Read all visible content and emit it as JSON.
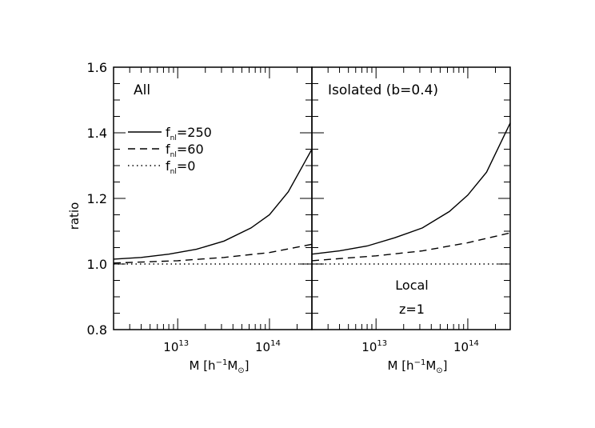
{
  "chart_data": [
    {
      "type": "line",
      "panel_label": "All",
      "xlabel": "M [h^-1 M_sun]",
      "xlabel_parts": {
        "main": "M  [h",
        "sup": "−1",
        "unit": "M",
        "sub": "⊙",
        "close": "]"
      },
      "ylabel": "ratio",
      "x_scale": "log",
      "xlim": [
        2000000000000.0,
        290000000000000.0
      ],
      "ylim": [
        0.8,
        1.6
      ],
      "x_ticks": [
        {
          "base": "10",
          "exp": "13",
          "value": 10000000000000.0
        },
        {
          "base": "10",
          "exp": "14",
          "value": 100000000000000.0
        }
      ],
      "y_ticks": [
        "0.8",
        "1.0",
        "1.2",
        "1.4",
        "1.6"
      ],
      "legend": [
        {
          "base": "f",
          "sub": "nl",
          "rest": "=250",
          "style": "solid"
        },
        {
          "base": "f",
          "sub": "nl",
          "rest": "=60",
          "style": "dashed"
        },
        {
          "base": "f",
          "sub": "nl",
          "rest": "=0",
          "style": "dotted"
        }
      ],
      "series": [
        {
          "name": "fnl=250",
          "style": "solid",
          "x": [
            2000000000000.0,
            4000000000000.0,
            8000000000000.0,
            16000000000000.0,
            32000000000000.0,
            63000000000000.0,
            100000000000000.0,
            160000000000000.0,
            290000000000000.0
          ],
          "y": [
            1.015,
            1.02,
            1.03,
            1.045,
            1.07,
            1.11,
            1.15,
            1.22,
            1.35
          ]
        },
        {
          "name": "fnl=60",
          "style": "dashed",
          "x": [
            2000000000000.0,
            10000000000000.0,
            32000000000000.0,
            100000000000000.0,
            290000000000000.0
          ],
          "y": [
            1.003,
            1.01,
            1.02,
            1.035,
            1.06
          ]
        },
        {
          "name": "fnl=0",
          "style": "dotted",
          "x": [
            2000000000000.0,
            290000000000000.0
          ],
          "y": [
            1.0,
            1.0
          ]
        }
      ]
    },
    {
      "type": "line",
      "panel_label": "Isolated (b=0.4)",
      "annotations": [
        "Local",
        "z=1"
      ],
      "x_scale": "log",
      "xlim": [
        2000000000000.0,
        290000000000000.0
      ],
      "ylim": [
        0.8,
        1.6
      ],
      "x_ticks": [
        {
          "base": "10",
          "exp": "13",
          "value": 10000000000000.0
        },
        {
          "base": "10",
          "exp": "14",
          "value": 100000000000000.0
        }
      ],
      "series": [
        {
          "name": "fnl=250",
          "style": "solid",
          "x": [
            2000000000000.0,
            4000000000000.0,
            8000000000000.0,
            16000000000000.0,
            32000000000000.0,
            63000000000000.0,
            100000000000000.0,
            160000000000000.0,
            290000000000000.0
          ],
          "y": [
            1.03,
            1.04,
            1.055,
            1.08,
            1.11,
            1.16,
            1.21,
            1.28,
            1.43
          ]
        },
        {
          "name": "fnl=60",
          "style": "dashed",
          "x": [
            2000000000000.0,
            10000000000000.0,
            32000000000000.0,
            100000000000000.0,
            290000000000000.0
          ],
          "y": [
            1.01,
            1.025,
            1.04,
            1.065,
            1.095
          ]
        },
        {
          "name": "fnl=0",
          "style": "dotted",
          "x": [
            2000000000000.0,
            290000000000000.0
          ],
          "y": [
            1.0,
            1.0
          ]
        }
      ]
    }
  ]
}
